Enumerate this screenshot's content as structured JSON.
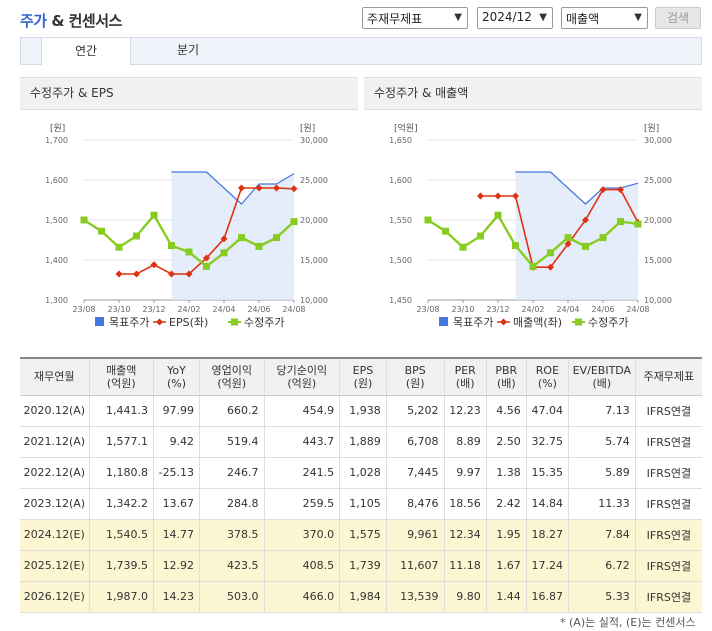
{
  "header": {
    "title_main": "주가",
    "title_rest": " & 컨센서스",
    "select_basis": "주재무제표",
    "select_period": "2024/12",
    "select_item": "매출액",
    "search_label": "검색"
  },
  "tabs": [
    {
      "label": "연간"
    },
    {
      "label": "분기"
    }
  ],
  "charts": [
    {
      "title": "수정주가 & EPS",
      "left_unit": "[원]",
      "right_unit": "[원]",
      "legend": [
        "목표주가",
        "EPS(좌)",
        "수정주가"
      ]
    },
    {
      "title": "수정주가 & 매출액",
      "left_unit": "[억원]",
      "right_unit": "[원]",
      "legend": [
        "목표주가",
        "매출액(좌)",
        "수정주가"
      ]
    }
  ],
  "chart_data": [
    {
      "type": "line",
      "title": "수정주가 & EPS",
      "x": [
        "23/08",
        "23/09",
        "23/10",
        "23/11",
        "23/12",
        "24/01",
        "24/02",
        "24/03",
        "24/04",
        "24/05",
        "24/06",
        "24/07",
        "24/08"
      ],
      "xticks": [
        "23/08",
        "23/10",
        "23/12",
        "24/02",
        "24/04",
        "24/06",
        "24/08"
      ],
      "left_axis": {
        "range": [
          1300,
          1700
        ],
        "ticks": [
          "1,300",
          "1,400",
          "1,500",
          "1,600",
          "1,700"
        ]
      },
      "right_axis": {
        "range": [
          10000,
          30000
        ],
        "ticks": [
          "10,000",
          "15,000",
          "20,000",
          "25,000",
          "30,000"
        ]
      },
      "series": [
        {
          "name": "목표주가",
          "axis": "right",
          "color": "#4477dd",
          "values": [
            null,
            null,
            null,
            null,
            null,
            26000,
            26000,
            26000,
            24000,
            22000,
            24500,
            24500,
            25800
          ]
        },
        {
          "name": "EPS(좌)",
          "axis": "left",
          "color": "#dd3311",
          "values": [
            null,
            null,
            1365,
            1365,
            1388,
            1365,
            1365,
            1405,
            1453,
            1580,
            1580,
            1580,
            1578
          ]
        },
        {
          "name": "수정주가",
          "axis": "right",
          "color": "#88cc22",
          "values": [
            20000,
            18600,
            16600,
            18000,
            20600,
            16800,
            16000,
            14200,
            15900,
            17800,
            16700,
            17800,
            19800
          ]
        }
      ]
    },
    {
      "type": "line",
      "title": "수정주가 & 매출액",
      "x": [
        "23/08",
        "23/09",
        "23/10",
        "23/11",
        "23/12",
        "24/01",
        "24/02",
        "24/03",
        "24/04",
        "24/05",
        "24/06",
        "24/07",
        "24/08"
      ],
      "xticks": [
        "23/08",
        "23/10",
        "23/12",
        "24/02",
        "24/04",
        "24/06",
        "24/08"
      ],
      "left_axis": {
        "range": [
          1450,
          1650
        ],
        "ticks": [
          "1,450",
          "1,500",
          "1,550",
          "1,600",
          "1,650"
        ]
      },
      "right_axis": {
        "range": [
          10000,
          30000
        ],
        "ticks": [
          "10,000",
          "15,000",
          "20,000",
          "25,000",
          "30,000"
        ]
      },
      "series": [
        {
          "name": "목표주가",
          "axis": "right",
          "color": "#4477dd",
          "values": [
            null,
            null,
            null,
            null,
            null,
            26000,
            26000,
            26000,
            24000,
            22000,
            24000,
            24000,
            24600
          ]
        },
        {
          "name": "매출액(좌)",
          "axis": "left",
          "color": "#dd3311",
          "values": [
            null,
            null,
            null,
            1580,
            1580,
            1580,
            1491,
            1491,
            1520,
            1550,
            1588,
            1588,
            1547
          ]
        },
        {
          "name": "수정주가",
          "axis": "right",
          "color": "#88cc22",
          "values": [
            20000,
            18600,
            16600,
            18000,
            20600,
            16800,
            14200,
            15900,
            17800,
            16700,
            17800,
            19800,
            19500
          ]
        }
      ]
    }
  ],
  "table": {
    "headers": [
      {
        "l1": "재무연월",
        "l2": ""
      },
      {
        "l1": "매출액",
        "l2": "(억원)"
      },
      {
        "l1": "YoY",
        "l2": "(%)"
      },
      {
        "l1": "영업이익",
        "l2": "(억원)"
      },
      {
        "l1": "당기순이익",
        "l2": "(억원)"
      },
      {
        "l1": "EPS",
        "l2": "(원)"
      },
      {
        "l1": "BPS",
        "l2": "(원)"
      },
      {
        "l1": "PER",
        "l2": "(배)"
      },
      {
        "l1": "PBR",
        "l2": "(배)"
      },
      {
        "l1": "ROE",
        "l2": "(%)"
      },
      {
        "l1": "EV/EBITDA",
        "l2": "(배)"
      },
      {
        "l1": "주재무제표",
        "l2": ""
      }
    ],
    "rows": [
      {
        "est": false,
        "cells": [
          "2020.12(A)",
          "1,441.3",
          "97.99",
          "660.2",
          "454.9",
          "1,938",
          "5,202",
          "12.23",
          "4.56",
          "47.04",
          "7.13",
          "IFRS연결"
        ]
      },
      {
        "est": false,
        "cells": [
          "2021.12(A)",
          "1,577.1",
          "9.42",
          "519.4",
          "443.7",
          "1,889",
          "6,708",
          "8.89",
          "2.50",
          "32.75",
          "5.74",
          "IFRS연결"
        ]
      },
      {
        "est": false,
        "cells": [
          "2022.12(A)",
          "1,180.8",
          "-25.13",
          "246.7",
          "241.5",
          "1,028",
          "7,445",
          "9.97",
          "1.38",
          "15.35",
          "5.89",
          "IFRS연결"
        ]
      },
      {
        "est": false,
        "cells": [
          "2023.12(A)",
          "1,342.2",
          "13.67",
          "284.8",
          "259.5",
          "1,105",
          "8,476",
          "18.56",
          "2.42",
          "14.84",
          "11.33",
          "IFRS연결"
        ]
      },
      {
        "est": true,
        "cells": [
          "2024.12(E)",
          "1,540.5",
          "14.77",
          "378.5",
          "370.0",
          "1,575",
          "9,961",
          "12.34",
          "1.95",
          "18.27",
          "7.84",
          "IFRS연결"
        ]
      },
      {
        "est": true,
        "cells": [
          "2025.12(E)",
          "1,739.5",
          "12.92",
          "423.5",
          "408.5",
          "1,739",
          "11,607",
          "11.18",
          "1.67",
          "17.24",
          "6.72",
          "IFRS연결"
        ]
      },
      {
        "est": true,
        "cells": [
          "2026.12(E)",
          "1,987.0",
          "14.23",
          "503.0",
          "466.0",
          "1,984",
          "13,539",
          "9.80",
          "1.44",
          "16.87",
          "5.33",
          "IFRS연결"
        ]
      }
    ]
  },
  "note": "* (A)는 실적, (E)는 컨센서스"
}
